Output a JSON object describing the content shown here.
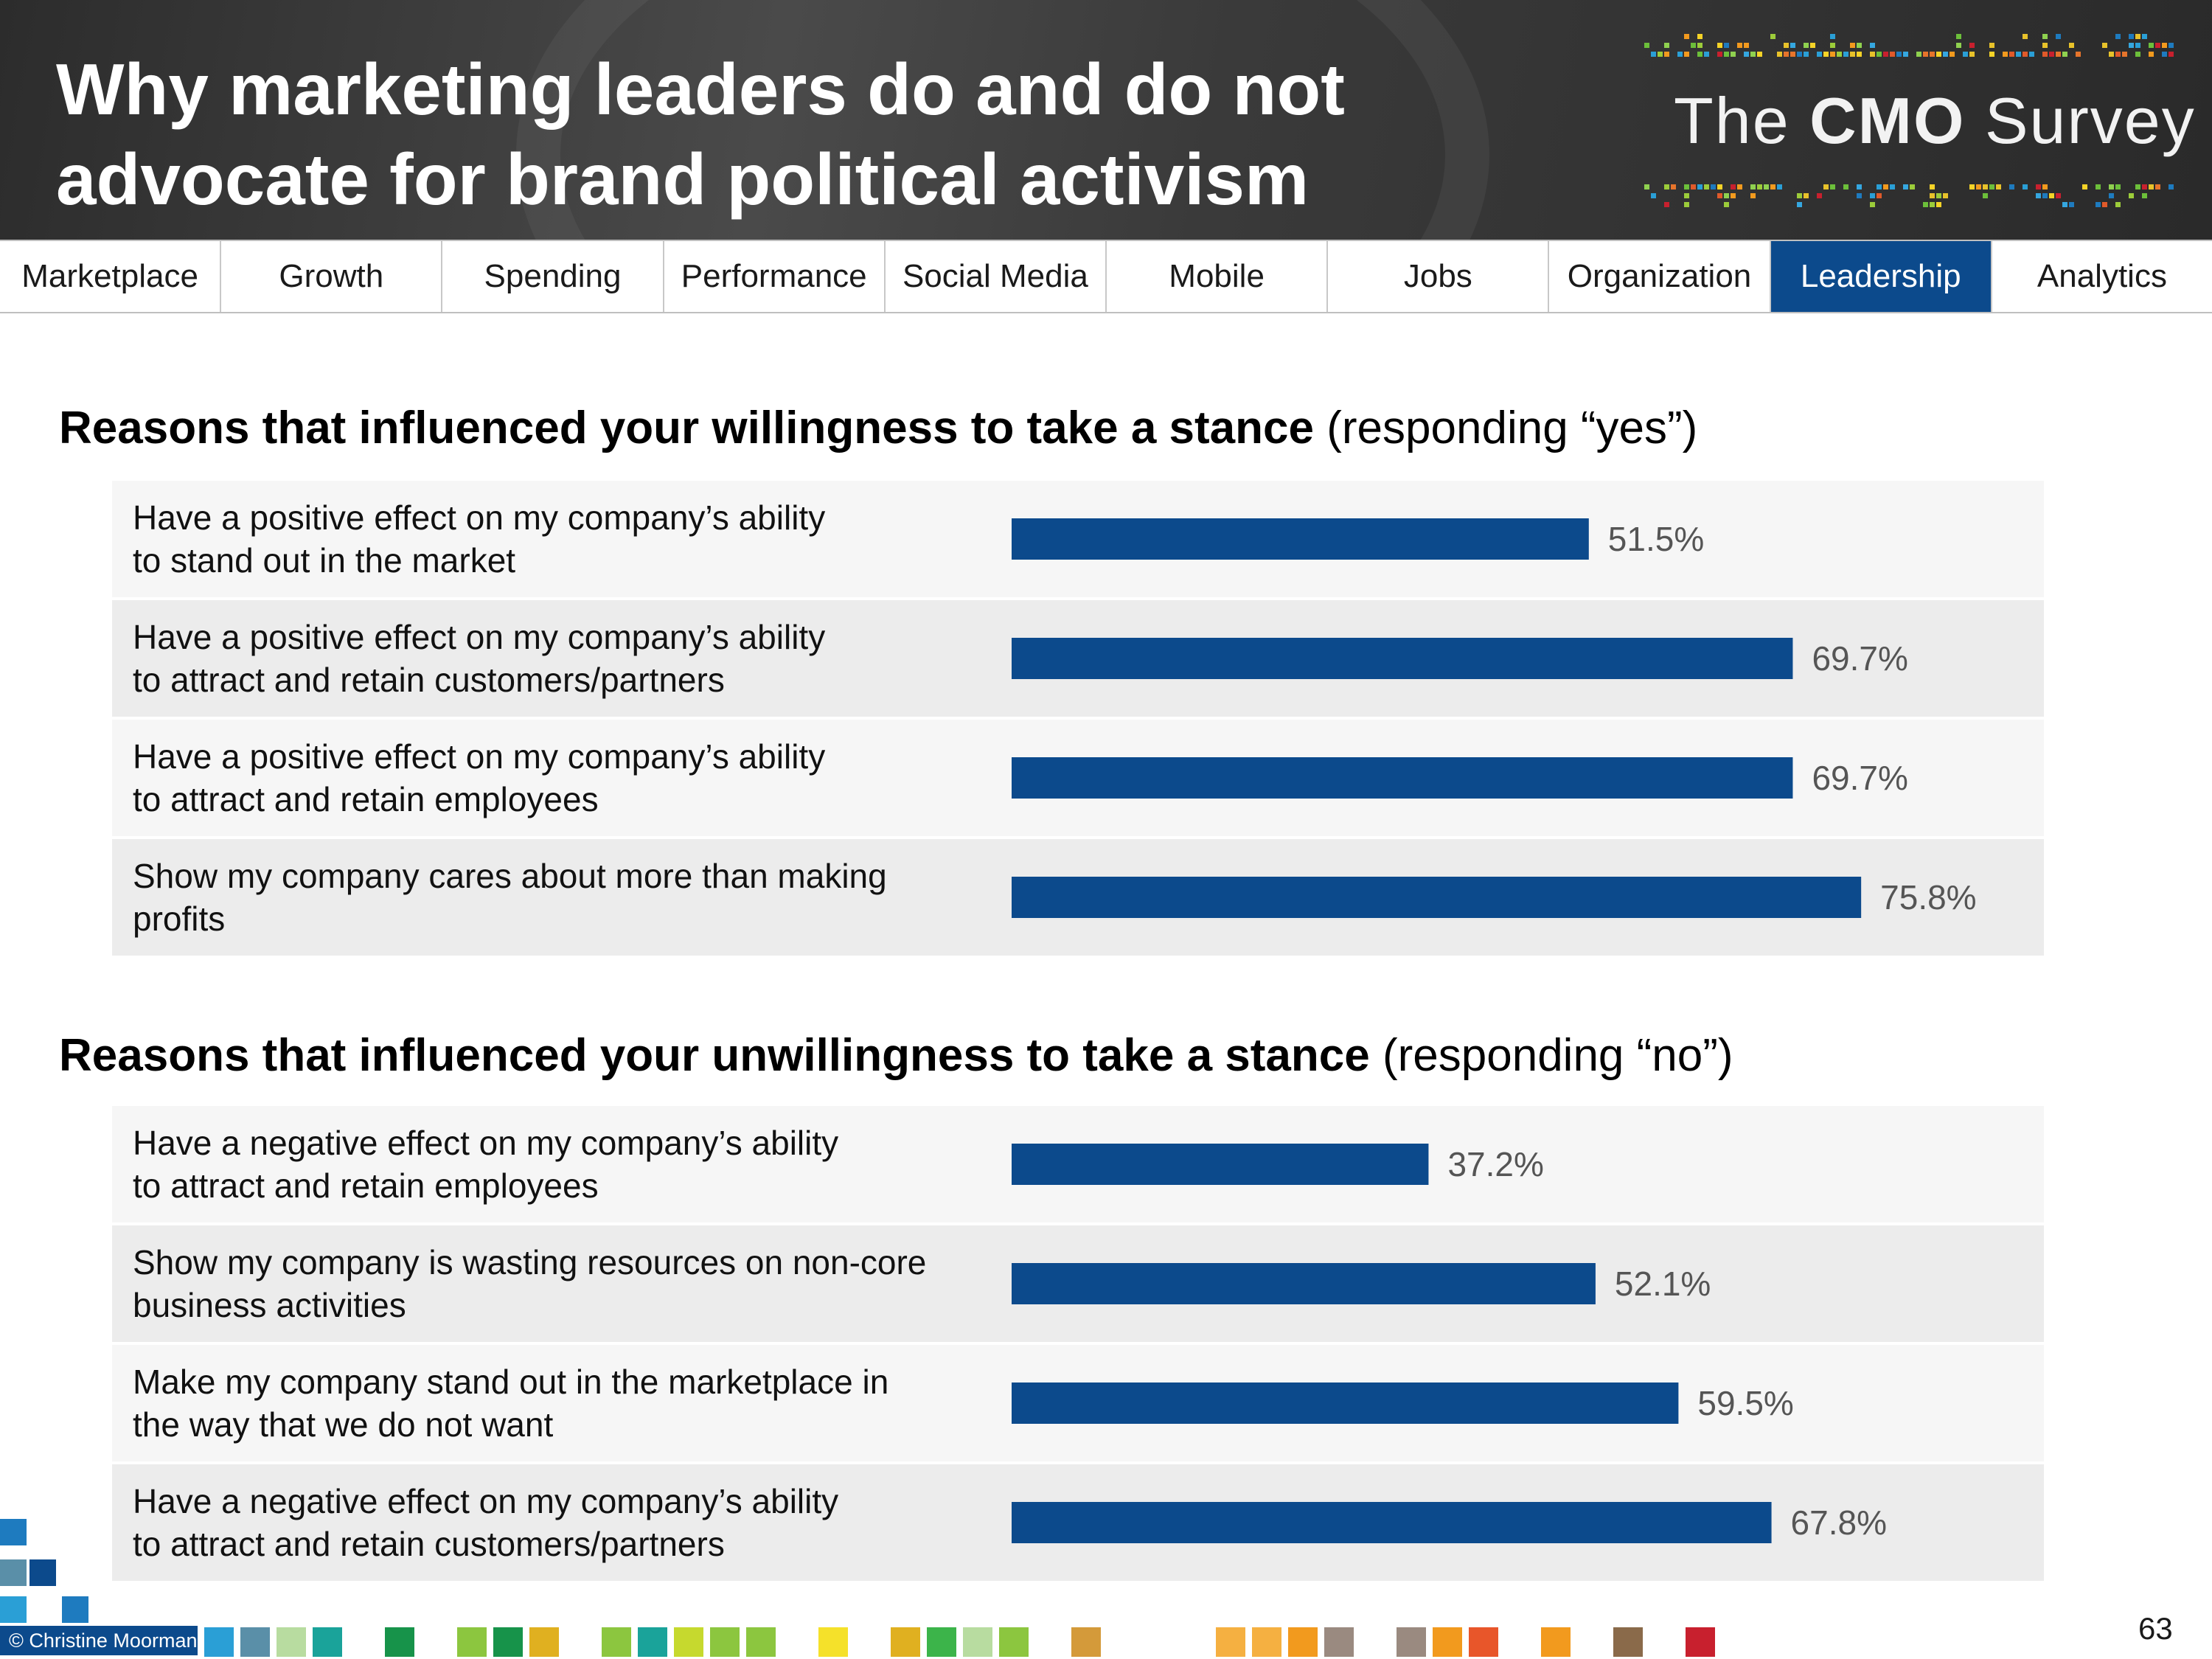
{
  "slide": {
    "title": "Why marketing leaders do and do not advocate for brand political activism",
    "page_number": "63",
    "copyright": "© Christine Moorman"
  },
  "logo": {
    "prefix": "The",
    "bold": "CMO",
    "suffix": "Survey"
  },
  "nav": {
    "tabs": [
      "Marketplace",
      "Growth",
      "Spending",
      "Performance",
      "Social Media",
      "Mobile",
      "Jobs",
      "Organization",
      "Leadership",
      "Analytics"
    ],
    "active": "Leadership"
  },
  "sections": [
    {
      "title_bold": "Reasons that influenced your willingness to take a stance",
      "title_rest": " (responding “yes”)"
    },
    {
      "title_bold": "Reasons that influenced your unwillingness to take a stance",
      "title_rest": " (responding “no”)"
    }
  ],
  "colors": {
    "bar": "#0c4a8c",
    "row_light": "#f6f6f6",
    "row_dark": "#ececec",
    "nav_active": "#0c4a8c"
  },
  "chart_data": [
    {
      "type": "bar",
      "orientation": "horizontal",
      "unit": "%",
      "categories": [
        "Have a positive effect on my company’s ability to stand out in the market",
        "Have a positive effect on my company’s ability to attract and retain customers/partners",
        "Have a positive effect on my company’s ability to attract and retain employees",
        "Show my company cares about more than making profits"
      ],
      "values": [
        51.5,
        69.7,
        69.7,
        75.8
      ],
      "labels": [
        "51.5%",
        "69.7%",
        "69.7%",
        "75.8%"
      ],
      "xlim": [
        0,
        100
      ]
    },
    {
      "type": "bar",
      "orientation": "horizontal",
      "unit": "%",
      "categories": [
        "Have a negative effect on my company’s ability to attract and retain employees",
        "Show my company is wasting resources on non-core business activities",
        "Make my company stand out in the marketplace in the way that we do not want",
        "Have a negative effect on my company’s ability to attract and retain customers/partners"
      ],
      "values": [
        37.2,
        52.1,
        59.5,
        67.8
      ],
      "labels": [
        "37.2%",
        "52.1%",
        "59.5%",
        "67.8%"
      ],
      "xlim": [
        0,
        100
      ]
    }
  ]
}
